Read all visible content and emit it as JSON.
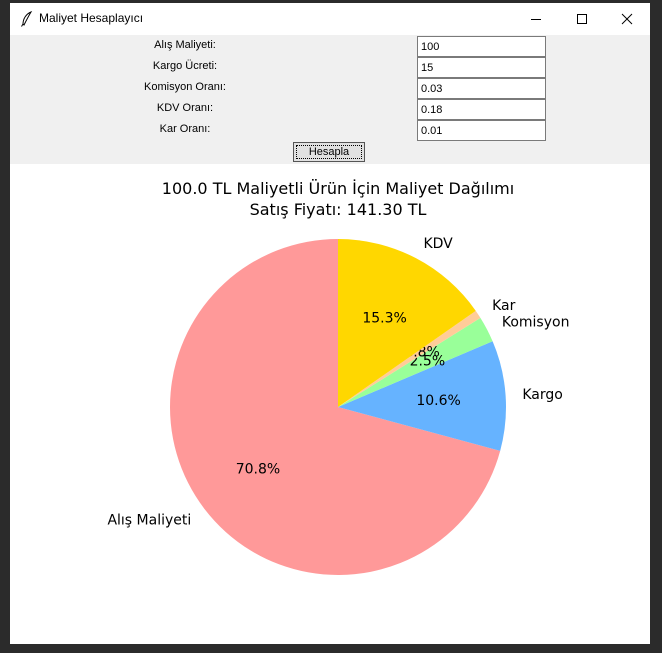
{
  "window": {
    "title": "Maliyet Hesaplayıcı",
    "minimize_icon": "minimize-icon",
    "maximize_icon": "maximize-icon",
    "close_icon": "close-icon"
  },
  "form": {
    "fields": [
      {
        "label": "Alış Maliyeti:",
        "value": "100"
      },
      {
        "label": "Kargo Ücreti:",
        "value": "15"
      },
      {
        "label": "Komisyon Oranı:",
        "value": "0.03"
      },
      {
        "label": "KDV Oranı:",
        "value": "0.18"
      },
      {
        "label": "Kar Oranı:",
        "value": "0.01"
      }
    ],
    "button_label": "Hesapla"
  },
  "chart_data": {
    "type": "pie",
    "title": "100.0 TL Maliyetli Ürün İçin Maliyet Dağılımı",
    "subtitle": "Satış Fiyatı: 141.30 TL",
    "slices": [
      {
        "label": "Alış Maliyeti",
        "value": 70.8,
        "pct_label": "70.8%",
        "color": "#ff9999"
      },
      {
        "label": "Kargo",
        "value": 10.6,
        "pct_label": "10.6%",
        "color": "#66b3ff"
      },
      {
        "label": "Komisyon",
        "value": 2.5,
        "pct_label": "2.5%",
        "color": "#99ff99"
      },
      {
        "label": "Kar",
        "value": 0.8,
        "pct_label": "0.8%",
        "color": "#ffcc99"
      },
      {
        "label": "KDV",
        "value": 15.3,
        "pct_label": "15.3%",
        "color": "#ffd700"
      }
    ]
  }
}
